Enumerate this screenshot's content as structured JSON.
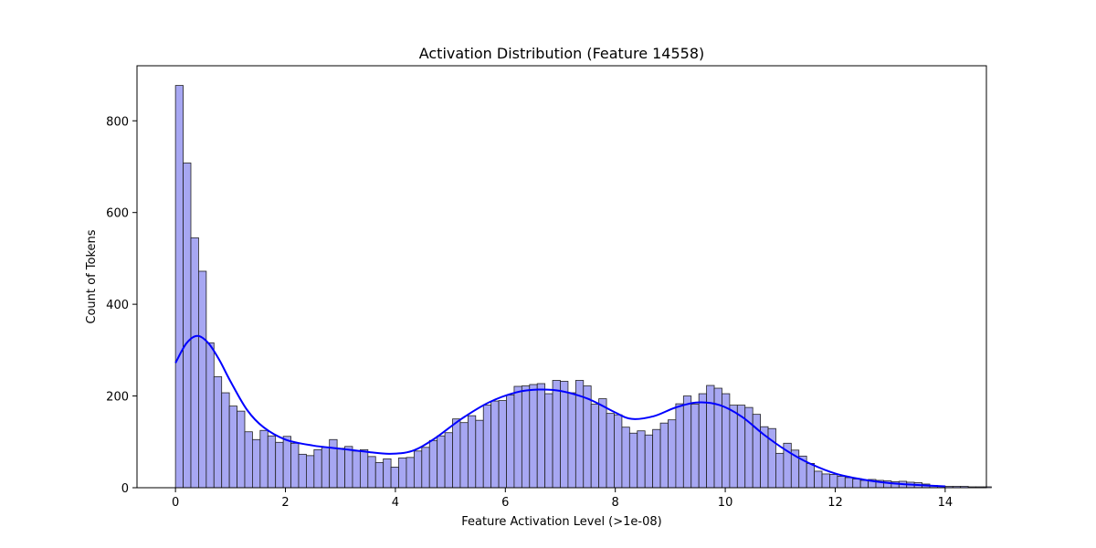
{
  "chart_data": {
    "type": "bar",
    "subtype": "histogram_with_kde",
    "title": "Activation Distribution (Feature 14558)",
    "xlabel": "Feature Activation Level (>1e-08)",
    "ylabel": "Count of Tokens",
    "xlim": [
      -0.7,
      14.75
    ],
    "ylim": [
      0,
      920
    ],
    "xticks": [
      0,
      2,
      4,
      6,
      8,
      10,
      12,
      14
    ],
    "yticks": [
      0,
      200,
      400,
      600,
      800
    ],
    "grid": false,
    "bin_start": 0.0,
    "bin_width": 0.14,
    "counts": [
      877,
      708,
      545,
      472,
      316,
      242,
      207,
      178,
      167,
      122,
      105,
      125,
      113,
      99,
      112,
      97,
      73,
      70,
      83,
      88,
      105,
      86,
      90,
      80,
      83,
      68,
      55,
      63,
      45,
      65,
      66,
      80,
      88,
      103,
      113,
      120,
      150,
      142,
      157,
      147,
      180,
      189,
      190,
      202,
      221,
      222,
      225,
      227,
      205,
      234,
      232,
      207,
      234,
      222,
      182,
      194,
      162,
      159,
      132,
      119,
      124,
      115,
      127,
      141,
      148,
      183,
      200,
      182,
      205,
      223,
      217,
      205,
      180,
      180,
      175,
      160,
      133,
      129,
      75,
      97,
      82,
      69,
      53,
      36,
      30,
      29,
      25,
      22,
      19,
      16,
      18,
      16,
      15,
      13,
      14,
      12,
      11,
      8,
      5,
      4,
      3,
      3,
      3,
      2,
      2,
      2
    ],
    "kde": {
      "x": [
        0.0,
        0.2,
        0.4,
        0.6,
        0.8,
        1.0,
        1.3,
        1.6,
        2.0,
        2.5,
        3.0,
        3.5,
        3.9,
        4.3,
        4.7,
        5.2,
        5.7,
        6.2,
        6.6,
        7.0,
        7.5,
        8.0,
        8.3,
        8.7,
        9.1,
        9.5,
        9.9,
        10.3,
        10.7,
        11.1,
        11.5,
        12.0,
        12.5,
        13.0,
        13.5,
        14.0
      ],
      "y": [
        272,
        315,
        331,
        315,
        278,
        232,
        170,
        132,
        105,
        92,
        85,
        78,
        74,
        80,
        106,
        150,
        186,
        208,
        214,
        211,
        194,
        164,
        150,
        156,
        175,
        186,
        180,
        155,
        116,
        82,
        55,
        31,
        18,
        10,
        6,
        3
      ]
    },
    "colors": {
      "bar_fill": "#a7a7f2",
      "bar_edge": "#222222",
      "kde_line": "#0000ff"
    }
  }
}
